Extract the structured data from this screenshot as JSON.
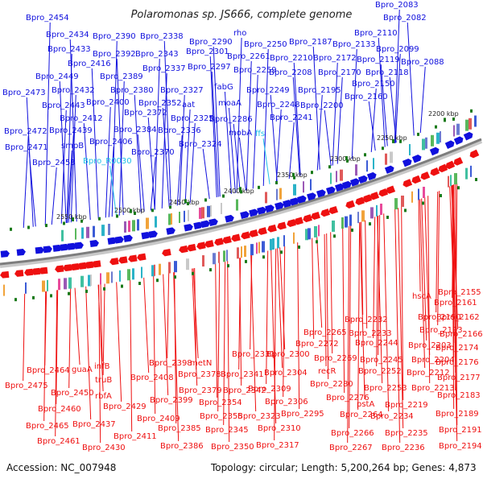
{
  "title": "Polaromonas sp. JS666, complete genome",
  "footer": {
    "accession": "Accession: NC_007948",
    "info": "Topology: circular; Length: 5,200,264 bp; Genes: 4,873"
  },
  "colors": {
    "forward": "#1010dd",
    "reverse": "#ee1010",
    "rna": "#20c0e8",
    "ring": "#8a8a8a",
    "tick": "#1a7a1a"
  },
  "scale_ticks": [
    "2200 kbp",
    "2250 kbp",
    "2300 kbp",
    "2350 kbp",
    "2400 kbp",
    "2450 kbp",
    "2500 kbp",
    "2550 kbp"
  ],
  "top_labels": [
    {
      "text": "Bpro_2083",
      "color": "forward"
    },
    {
      "text": "Bpro_2082",
      "color": "forward"
    },
    {
      "text": "Bpro_2454",
      "color": "forward"
    },
    {
      "text": "Bpro_2434",
      "color": "forward"
    },
    {
      "text": "Bpro_2390",
      "color": "forward"
    },
    {
      "text": "Bpro_2338",
      "color": "forward"
    },
    {
      "text": "rho",
      "color": "forward"
    },
    {
      "text": "Bpro_2290",
      "color": "forward"
    },
    {
      "text": "Bpro_2250",
      "color": "forward"
    },
    {
      "text": "Bpro_2187",
      "color": "forward"
    },
    {
      "text": "Bpro_2133",
      "color": "forward"
    },
    {
      "text": "Bpro_2110",
      "color": "forward"
    },
    {
      "text": "Bpro_2433",
      "color": "forward"
    },
    {
      "text": "Bpro_2392",
      "color": "forward"
    },
    {
      "text": "Bpro_2343",
      "color": "forward"
    },
    {
      "text": "Bpro_2301",
      "color": "forward"
    },
    {
      "text": "Bpro_2261",
      "color": "forward"
    },
    {
      "text": "Bpro_2210",
      "color": "forward"
    },
    {
      "text": "Bpro_2172",
      "color": "forward"
    },
    {
      "text": "Bpro_2119",
      "color": "forward"
    },
    {
      "text": "Bpro_2099",
      "color": "forward"
    },
    {
      "text": "Bpro_2416",
      "color": "forward"
    },
    {
      "text": "Bpro_2337",
      "color": "forward"
    },
    {
      "text": "Bpro_2297",
      "color": "forward"
    },
    {
      "text": "Bpro_2259",
      "color": "forward"
    },
    {
      "text": "Bpro_2208",
      "color": "forward"
    },
    {
      "text": "Bpro_2170",
      "color": "forward"
    },
    {
      "text": "Bpro_2118",
      "color": "forward"
    },
    {
      "text": "Bpro_2088",
      "color": "forward"
    },
    {
      "text": "Bpro_2449",
      "color": "forward"
    },
    {
      "text": "Bpro_2389",
      "color": "forward"
    },
    {
      "text": "fabG",
      "color": "forward"
    },
    {
      "text": "Bpro_2150",
      "color": "forward"
    },
    {
      "text": "Bpro_2473",
      "color": "forward"
    },
    {
      "text": "Bpro_2432",
      "color": "forward"
    },
    {
      "text": "Bpro_2380",
      "color": "forward"
    },
    {
      "text": "Bpro_2327",
      "color": "forward"
    },
    {
      "text": "Bpro_2249",
      "color": "forward"
    },
    {
      "text": "Bpro_2195",
      "color": "forward"
    },
    {
      "text": "Bpro_2160",
      "color": "forward"
    },
    {
      "text": "Bpro_2400",
      "color": "forward"
    },
    {
      "text": "Bpro_2352",
      "color": "forward"
    },
    {
      "text": "aat",
      "color": "forward"
    },
    {
      "text": "moaA",
      "color": "forward"
    },
    {
      "text": "Bpro_2248",
      "color": "forward"
    },
    {
      "text": "Bpro_2200",
      "color": "forward"
    },
    {
      "text": "Bpro_2443",
      "color": "forward"
    },
    {
      "text": "Bpro_2372",
      "color": "forward"
    },
    {
      "text": "Bpro_2241",
      "color": "forward"
    },
    {
      "text": "Bpro_2412",
      "color": "forward"
    },
    {
      "text": "Bpro_2325",
      "color": "forward"
    },
    {
      "text": "Bpro_2286",
      "color": "forward"
    },
    {
      "text": "Bpro_2439",
      "color": "forward"
    },
    {
      "text": "Bpro_2384",
      "color": "forward"
    },
    {
      "text": "Bpro_2336",
      "color": "forward"
    },
    {
      "text": "mobA",
      "color": "forward"
    },
    {
      "text": "Bpro_2472",
      "color": "forward"
    },
    {
      "text": "ffs",
      "color": "rna"
    },
    {
      "text": "Bpro_2406",
      "color": "forward"
    },
    {
      "text": "Bpro_2324",
      "color": "forward"
    },
    {
      "text": "smpB",
      "color": "forward"
    },
    {
      "text": "Bpro_2471",
      "color": "forward"
    },
    {
      "text": "Bpro_2370",
      "color": "forward"
    },
    {
      "text": "Bpro_R0030",
      "color": "rna"
    },
    {
      "text": "Bpro_2453",
      "color": "forward"
    }
  ],
  "bottom_labels": [
    {
      "text": "Bpro_2155",
      "color": "reverse"
    },
    {
      "text": "hscA",
      "color": "reverse"
    },
    {
      "text": "Bpro_2161",
      "color": "reverse"
    },
    {
      "text": "Bpro_2162",
      "color": "reverse"
    },
    {
      "text": "Bpro_2232",
      "color": "reverse"
    },
    {
      "text": "Bpro_2190",
      "color": "reverse"
    },
    {
      "text": "Bpro_2265",
      "color": "reverse"
    },
    {
      "text": "Bpro_2233",
      "color": "reverse"
    },
    {
      "text": "Bpro_2193",
      "color": "reverse"
    },
    {
      "text": "Bpro_2166",
      "color": "reverse"
    },
    {
      "text": "Bpro_2272",
      "color": "reverse"
    },
    {
      "text": "Bpro_2244",
      "color": "reverse"
    },
    {
      "text": "Bpro_2203",
      "color": "reverse"
    },
    {
      "text": "Bpro_2174",
      "color": "reverse"
    },
    {
      "text": "Bpro_2331",
      "color": "reverse"
    },
    {
      "text": "Bpro_2300",
      "color": "reverse"
    },
    {
      "text": "Bpro_2269",
      "color": "reverse"
    },
    {
      "text": "Bpro_2245",
      "color": "reverse"
    },
    {
      "text": "Bpro_2204",
      "color": "reverse"
    },
    {
      "text": "Bpro_2176",
      "color": "reverse"
    },
    {
      "text": "Bpro_2398",
      "color": "reverse"
    },
    {
      "text": "metN",
      "color": "reverse"
    },
    {
      "text": "infB",
      "color": "reverse"
    },
    {
      "text": "Bpro_2464",
      "color": "reverse"
    },
    {
      "text": "guaA",
      "color": "reverse"
    },
    {
      "text": "Bpro_2378",
      "color": "reverse"
    },
    {
      "text": "Bpro_2341",
      "color": "reverse"
    },
    {
      "text": "Bpro_2304",
      "color": "reverse"
    },
    {
      "text": "recR",
      "color": "reverse"
    },
    {
      "text": "Bpro_2252",
      "color": "reverse"
    },
    {
      "text": "Bpro_2212",
      "color": "reverse"
    },
    {
      "text": "Bpro_2177",
      "color": "reverse"
    },
    {
      "text": "truB",
      "color": "reverse"
    },
    {
      "text": "Bpro_2408",
      "color": "reverse"
    },
    {
      "text": "Bpro_2280",
      "color": "reverse"
    },
    {
      "text": "Bpro_2475",
      "color": "reverse"
    },
    {
      "text": "Bpro_2379",
      "color": "reverse"
    },
    {
      "text": "Bpro_2342",
      "color": "reverse"
    },
    {
      "text": "Bpro_2309",
      "color": "reverse"
    },
    {
      "text": "Bpro_2253",
      "color": "reverse"
    },
    {
      "text": "Bpro_2213",
      "color": "reverse"
    },
    {
      "text": "Bpro_2450",
      "color": "reverse"
    },
    {
      "text": "rbfA",
      "color": "reverse"
    },
    {
      "text": "Bpro_2276",
      "color": "reverse"
    },
    {
      "text": "Bpro_2183",
      "color": "reverse"
    },
    {
      "text": "Bpro_2399",
      "color": "reverse"
    },
    {
      "text": "Bpro_2354",
      "color": "reverse"
    },
    {
      "text": "Bpro_2306",
      "color": "reverse"
    },
    {
      "text": "pstA",
      "color": "reverse"
    },
    {
      "text": "Bpro_2219",
      "color": "reverse"
    },
    {
      "text": "Bpro_2460",
      "color": "reverse"
    },
    {
      "text": "Bpro_2429",
      "color": "reverse"
    },
    {
      "text": "Bpro_2189",
      "color": "reverse"
    },
    {
      "text": "Bpro_2355",
      "color": "reverse"
    },
    {
      "text": "Bpro_2323",
      "color": "reverse"
    },
    {
      "text": "Bpro_2295",
      "color": "reverse"
    },
    {
      "text": "Bpro_2264",
      "color": "reverse"
    },
    {
      "text": "Bpro_2234",
      "color": "reverse"
    },
    {
      "text": "Bpro_2409",
      "color": "reverse"
    },
    {
      "text": "Bpro_2465",
      "color": "reverse"
    },
    {
      "text": "Bpro_2437",
      "color": "reverse"
    },
    {
      "text": "Bpro_2385",
      "color": "reverse"
    },
    {
      "text": "Bpro_2345",
      "color": "reverse"
    },
    {
      "text": "Bpro_2310",
      "color": "reverse"
    },
    {
      "text": "Bpro_2191",
      "color": "reverse"
    },
    {
      "text": "Bpro_2266",
      "color": "reverse"
    },
    {
      "text": "Bpro_2235",
      "color": "reverse"
    },
    {
      "text": "Bpro_2411",
      "color": "reverse"
    },
    {
      "text": "Bpro_2461",
      "color": "reverse"
    },
    {
      "text": "Bpro_2386",
      "color": "reverse"
    },
    {
      "text": "Bpro_2350",
      "color": "reverse"
    },
    {
      "text": "Bpro_2317",
      "color": "reverse"
    },
    {
      "text": "Bpro_2194",
      "color": "reverse"
    },
    {
      "text": "Bpro_2430",
      "color": "reverse"
    },
    {
      "text": "Bpro_2267",
      "color": "reverse"
    },
    {
      "text": "Bpro_2236",
      "color": "reverse"
    }
  ]
}
